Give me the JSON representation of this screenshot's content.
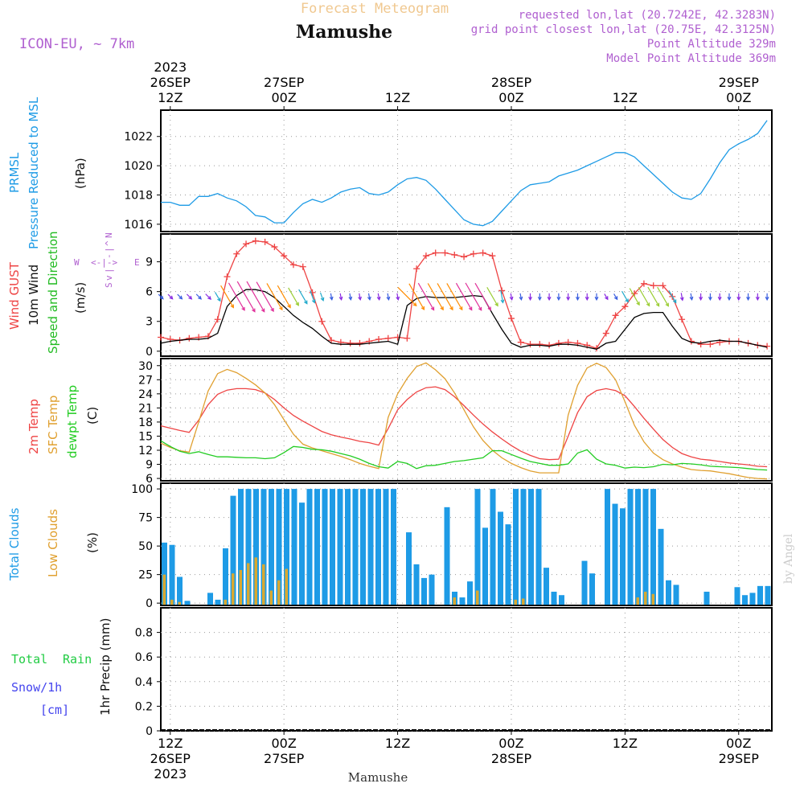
{
  "header": {
    "product": "Forecast Meteogram",
    "station": "Mamushe",
    "model": "ICON-EU, ~ 7km",
    "requested": "requested lon,lat (20.7242E, 42.3283N)",
    "gridpoint": "grid point closest lon,lat (20.75E, 42.3125N)",
    "point_alt": "Point Altitude 329m",
    "model_alt": "Model Point Altitude 369m",
    "credit": "by Angel",
    "footer_station": "Mamushe"
  },
  "time_axis": {
    "top_labels": [
      {
        "lines": [
          "2023",
          "26SEP",
          "12Z"
        ],
        "t": 1
      },
      {
        "lines": [
          "27SEP",
          "00Z"
        ],
        "t": 13
      },
      {
        "lines": [
          "12Z"
        ],
        "t": 25
      },
      {
        "lines": [
          "28SEP",
          "00Z"
        ],
        "t": 37
      },
      {
        "lines": [
          "12Z"
        ],
        "t": 49
      },
      {
        "lines": [
          "29SEP",
          "00Z"
        ],
        "t": 61
      }
    ],
    "bottom_labels": [
      {
        "lines": [
          "12Z",
          "26SEP",
          "2023"
        ],
        "t": 1
      },
      {
        "lines": [
          "00Z",
          "27SEP"
        ],
        "t": 13
      },
      {
        "lines": [
          "12Z"
        ],
        "t": 25
      },
      {
        "lines": [
          "00Z",
          "28SEP"
        ],
        "t": 37
      },
      {
        "lines": [
          "12Z"
        ],
        "t": 49
      },
      {
        "lines": [
          "00Z",
          "29SEP"
        ],
        "t": 61
      }
    ]
  },
  "colors": {
    "pressure": "#1e9be6",
    "gust": "#ee4444",
    "wind": "#000000",
    "dir": "#22bb22",
    "t2m": "#ee4444",
    "tsfc": "#e0a030",
    "td": "#22cc22",
    "total_cloud": "#1e9be6",
    "low_cloud": "#d9a830",
    "title_orange": "#f0c890",
    "purple": "#b060d0",
    "precip_total": "#22cc44",
    "precip_snow": "#4444ee"
  },
  "panels": {
    "pressure": {
      "labels": [
        "PRMSL",
        "Pressure Reduced to MSL"
      ],
      "unit": "(hPa)"
    },
    "wind": {
      "labels": [
        "Wind GUST",
        "10m Wind",
        "Speed and Direction"
      ],
      "unit": "(m/s)",
      "compass": {
        "n": "N",
        "s": "S",
        "w": "W",
        "e": "E",
        "h": "<-|->",
        "v1": "^",
        "v2": "|",
        "v3": "-",
        "v4": "|",
        "v5": "v"
      }
    },
    "temp": {
      "labels": [
        "2m Temp",
        "SFC Temp",
        "dewpt Temp"
      ],
      "unit": "(C)"
    },
    "cloud": {
      "labels": [
        "Total Clouds",
        "Low Clouds"
      ],
      "unit": "(%)"
    },
    "precip": {
      "labels": [
        "Total",
        "Rain",
        "Snow/1h",
        "[cm]"
      ],
      "unit": "1hr Precip (mm)"
    }
  },
  "chart_data": [
    {
      "type": "line",
      "panel": "pressure",
      "x_unit": "hours after 26SEP 11Z",
      "x": [
        0,
        1,
        2,
        3,
        4,
        5,
        6,
        7,
        8,
        9,
        10,
        11,
        12,
        13,
        14,
        15,
        16,
        17,
        18,
        19,
        20,
        21,
        22,
        23,
        24,
        25,
        26,
        27,
        28,
        29,
        30,
        31,
        32,
        33,
        34,
        35,
        36,
        37,
        38,
        39,
        40,
        41,
        42,
        43,
        44,
        45,
        46,
        47,
        48,
        49,
        50,
        51,
        52,
        53,
        54,
        55,
        56,
        57,
        58,
        59,
        60,
        61,
        62,
        63,
        64
      ],
      "series": [
        {
          "name": "PRMSL",
          "values": [
            1017.5,
            1017.5,
            1017.3,
            1017.3,
            1017.9,
            1017.9,
            1018.1,
            1017.8,
            1017.6,
            1017.2,
            1016.6,
            1016.5,
            1016.1,
            1016.1,
            1016.8,
            1017.4,
            1017.7,
            1017.5,
            1017.8,
            1018.2,
            1018.4,
            1018.5,
            1018.1,
            1018.0,
            1018.2,
            1018.7,
            1019.1,
            1019.2,
            1019.0,
            1018.4,
            1017.7,
            1017.0,
            1016.3,
            1016.0,
            1015.9,
            1016.2,
            1016.9,
            1017.6,
            1018.3,
            1018.7,
            1018.8,
            1018.9,
            1019.3,
            1019.5,
            1019.7,
            1020.0,
            1020.3,
            1020.6,
            1020.9,
            1020.9,
            1020.6,
            1020.0,
            1019.4,
            1018.8,
            1018.2,
            1017.8,
            1017.7,
            1018.1,
            1019.1,
            1020.2,
            1021.1,
            1021.5,
            1021.8,
            1022.2,
            1023.1
          ]
        }
      ],
      "ylim": [
        1015.5,
        1023.8
      ],
      "yticks": [
        1016,
        1018,
        1020,
        1022
      ]
    },
    {
      "type": "line",
      "panel": "wind",
      "x": [
        0,
        1,
        2,
        3,
        4,
        5,
        6,
        7,
        8,
        9,
        10,
        11,
        12,
        13,
        14,
        15,
        16,
        17,
        18,
        19,
        20,
        21,
        22,
        23,
        24,
        25,
        26,
        27,
        28,
        29,
        30,
        31,
        32,
        33,
        34,
        35,
        36,
        37,
        38,
        39,
        40,
        41,
        42,
        43,
        44,
        45,
        46,
        47,
        48,
        49,
        50,
        51,
        52,
        53,
        54,
        55,
        56,
        57,
        58,
        59,
        60,
        61,
        62,
        63,
        64
      ],
      "series": [
        {
          "name": "Wind GUST",
          "values": [
            1.4,
            1.2,
            1.1,
            1.3,
            1.4,
            1.5,
            3.2,
            7.5,
            9.8,
            10.8,
            11.1,
            11.0,
            10.5,
            9.6,
            8.7,
            8.5,
            5.9,
            3.0,
            1.1,
            0.9,
            0.8,
            0.8,
            1.0,
            1.2,
            1.3,
            1.4,
            1.3,
            8.3,
            9.6,
            9.9,
            9.9,
            9.7,
            9.5,
            9.8,
            9.9,
            9.6,
            6.1,
            3.3,
            0.9,
            0.7,
            0.7,
            0.6,
            0.8,
            0.9,
            0.8,
            0.6,
            0.3,
            1.8,
            3.6,
            4.5,
            5.8,
            6.8,
            6.6,
            6.6,
            5.5,
            3.2,
            1.0,
            0.7,
            0.7,
            0.9,
            1.0,
            1.0,
            0.8,
            0.6,
            0.5
          ]
        },
        {
          "name": "10m Wind",
          "values": [
            0.8,
            1.0,
            1.1,
            1.2,
            1.2,
            1.3,
            1.8,
            4.5,
            5.6,
            6.2,
            6.2,
            6.0,
            5.4,
            4.5,
            3.6,
            2.9,
            2.3,
            1.5,
            0.8,
            0.7,
            0.7,
            0.7,
            0.8,
            0.9,
            1.0,
            0.7,
            4.6,
            5.3,
            5.5,
            5.4,
            5.4,
            5.4,
            5.5,
            5.6,
            5.5,
            3.8,
            2.2,
            0.8,
            0.4,
            0.6,
            0.6,
            0.5,
            0.7,
            0.7,
            0.6,
            0.4,
            0.2,
            0.8,
            1.0,
            2.2,
            3.4,
            3.8,
            3.9,
            3.9,
            2.5,
            1.3,
            0.9,
            0.8,
            1.0,
            1.1,
            1.0,
            1.0,
            0.8,
            0.6,
            0.4
          ]
        }
      ],
      "direction_deg_toward": [
        225,
        225,
        225,
        225,
        225,
        225,
        210,
        210,
        210,
        210,
        210,
        210,
        210,
        210,
        210,
        210,
        200,
        200,
        190,
        190,
        190,
        190,
        190,
        190,
        190,
        190,
        225,
        210,
        210,
        210,
        210,
        210,
        210,
        210,
        210,
        210,
        190,
        190,
        190,
        180,
        180,
        180,
        180,
        180,
        180,
        180,
        180,
        210,
        210,
        210,
        210,
        210,
        210,
        210,
        210,
        190,
        190,
        180,
        180,
        180,
        180,
        180,
        180,
        180,
        180
      ],
      "ylim": [
        -0.5,
        11.8
      ],
      "yticks": [
        0,
        3,
        6,
        9
      ]
    },
    {
      "type": "line",
      "panel": "temp",
      "x": [
        0,
        1,
        2,
        3,
        4,
        5,
        6,
        7,
        8,
        9,
        10,
        11,
        12,
        13,
        14,
        15,
        16,
        17,
        18,
        19,
        20,
        21,
        22,
        23,
        24,
        25,
        26,
        27,
        28,
        29,
        30,
        31,
        32,
        33,
        34,
        35,
        36,
        37,
        38,
        39,
        40,
        41,
        42,
        43,
        44,
        45,
        46,
        47,
        48,
        49,
        50,
        51,
        52,
        53,
        54,
        55,
        56,
        57,
        58,
        59,
        60,
        61,
        62,
        63,
        64
      ],
      "series": [
        {
          "name": "2m Temp",
          "values": [
            17.2,
            16.7,
            16.2,
            15.8,
            18.4,
            21.7,
            23.9,
            24.8,
            25.1,
            25.1,
            24.9,
            24.2,
            22.8,
            21.0,
            19.4,
            18.2,
            17.1,
            16.0,
            15.3,
            14.8,
            14.4,
            13.9,
            13.6,
            13.1,
            16.6,
            20.6,
            22.8,
            24.4,
            25.3,
            25.5,
            24.9,
            23.4,
            21.5,
            19.5,
            17.6,
            15.9,
            14.4,
            13.0,
            11.8,
            10.9,
            10.2,
            10.0,
            10.1,
            15.0,
            20.0,
            23.4,
            24.7,
            25.1,
            24.7,
            23.6,
            21.3,
            18.8,
            16.5,
            14.3,
            12.6,
            11.3,
            10.6,
            10.1,
            9.9,
            9.6,
            9.3,
            9.1,
            8.9,
            8.6,
            8.5
          ]
        },
        {
          "name": "SFC Temp",
          "values": [
            13.5,
            12.6,
            11.9,
            11.6,
            18.0,
            24.6,
            28.3,
            29.2,
            28.5,
            27.3,
            25.9,
            24.2,
            21.7,
            18.5,
            15.4,
            13.3,
            12.5,
            11.9,
            11.3,
            10.7,
            10.0,
            9.2,
            8.6,
            8.1,
            19.0,
            24.0,
            27.3,
            29.8,
            30.6,
            29.1,
            27.2,
            24.2,
            20.6,
            17.0,
            14.1,
            12.0,
            10.4,
            9.2,
            8.3,
            7.6,
            7.2,
            7.2,
            7.2,
            19.5,
            25.8,
            29.5,
            30.5,
            29.6,
            27.0,
            22.3,
            17.3,
            13.8,
            11.4,
            10.0,
            9.1,
            8.4,
            7.9,
            7.7,
            7.6,
            7.3,
            7.0,
            6.6,
            6.2,
            6.0,
            5.9
          ]
        },
        {
          "name": "dewpt Temp",
          "values": [
            14.0,
            12.8,
            11.8,
            11.3,
            11.7,
            11.1,
            10.6,
            10.6,
            10.5,
            10.4,
            10.4,
            10.2,
            10.4,
            11.5,
            12.8,
            12.6,
            12.2,
            12.1,
            11.8,
            11.3,
            10.8,
            10.1,
            9.2,
            8.5,
            8.2,
            9.6,
            9.2,
            8.1,
            8.7,
            8.8,
            9.2,
            9.6,
            9.8,
            10.1,
            10.4,
            11.9,
            11.9,
            11.1,
            10.3,
            9.6,
            9.2,
            8.8,
            8.8,
            9.1,
            11.4,
            12.1,
            10.1,
            9.1,
            8.8,
            8.2,
            8.4,
            8.3,
            8.5,
            9.0,
            8.9,
            9.2,
            9.1,
            8.9,
            8.6,
            8.5,
            8.4,
            8.3,
            8.1,
            7.9,
            7.8
          ]
        }
      ],
      "ylim": [
        5.5,
        31.5
      ],
      "yticks": [
        6,
        9,
        12,
        15,
        18,
        21,
        24,
        27,
        30
      ]
    },
    {
      "type": "bar",
      "panel": "cloud",
      "x": [
        0,
        1,
        2,
        3,
        4,
        5,
        6,
        7,
        8,
        9,
        10,
        11,
        12,
        13,
        14,
        15,
        16,
        17,
        18,
        19,
        20,
        21,
        22,
        23,
        24,
        25,
        26,
        27,
        28,
        29,
        30,
        31,
        32,
        33,
        34,
        35,
        36,
        37,
        38,
        39,
        40,
        41,
        42,
        43,
        44,
        45,
        46,
        47,
        48,
        49,
        50,
        51,
        52,
        53,
        54,
        55,
        56,
        57,
        58,
        59,
        60,
        61,
        62,
        63,
        64,
        65,
        66,
        67,
        68,
        69,
        70,
        71,
        72,
        73,
        74,
        75,
        76,
        77,
        78,
        79
      ],
      "series": [
        {
          "name": "Total Clouds",
          "values": [
            53,
            51,
            23,
            2,
            0,
            0,
            9,
            3,
            48,
            94,
            100,
            100,
            100,
            100,
            100,
            100,
            100,
            100,
            88,
            100,
            100,
            100,
            100,
            100,
            100,
            100,
            100,
            100,
            100,
            100,
            100,
            0,
            62,
            34,
            22,
            25,
            0,
            84,
            10,
            5,
            19,
            100,
            66,
            100,
            80,
            69,
            100,
            100,
            100,
            100,
            31,
            10,
            7,
            0,
            0,
            37,
            26,
            0,
            100,
            87,
            83,
            100,
            100,
            100,
            100,
            65,
            20,
            16,
            0,
            0,
            0,
            10,
            0,
            0,
            0,
            14,
            7,
            9,
            15,
            15
          ]
        },
        {
          "name": "Low Clouds",
          "values": [
            25,
            3,
            1,
            0,
            0,
            0,
            0,
            0,
            3,
            26,
            29,
            35,
            40,
            34,
            11,
            20,
            30,
            0,
            0,
            0,
            0,
            0,
            0,
            0,
            0,
            0,
            0,
            0,
            0,
            0,
            0,
            0,
            0,
            0,
            0,
            0,
            0,
            0,
            5,
            0,
            0,
            11,
            0,
            0,
            0,
            0,
            3,
            4,
            0,
            0,
            0,
            0,
            0,
            0,
            0,
            0,
            0,
            0,
            0,
            0,
            0,
            0,
            5,
            10,
            8,
            0,
            0,
            0,
            0,
            0,
            0,
            0,
            0,
            0,
            0,
            0,
            0,
            0,
            0,
            0
          ]
        }
      ],
      "ylim": [
        -2,
        105
      ],
      "yticks": [
        0,
        25,
        50,
        75,
        100
      ]
    },
    {
      "type": "bar",
      "panel": "precip",
      "series": [
        {
          "name": "Total",
          "values": []
        },
        {
          "name": "Snow/1h",
          "values": []
        }
      ],
      "ylim": [
        0,
        1.0
      ],
      "yticks": [
        0,
        0.2,
        0.4,
        0.6,
        0.8
      ]
    }
  ]
}
